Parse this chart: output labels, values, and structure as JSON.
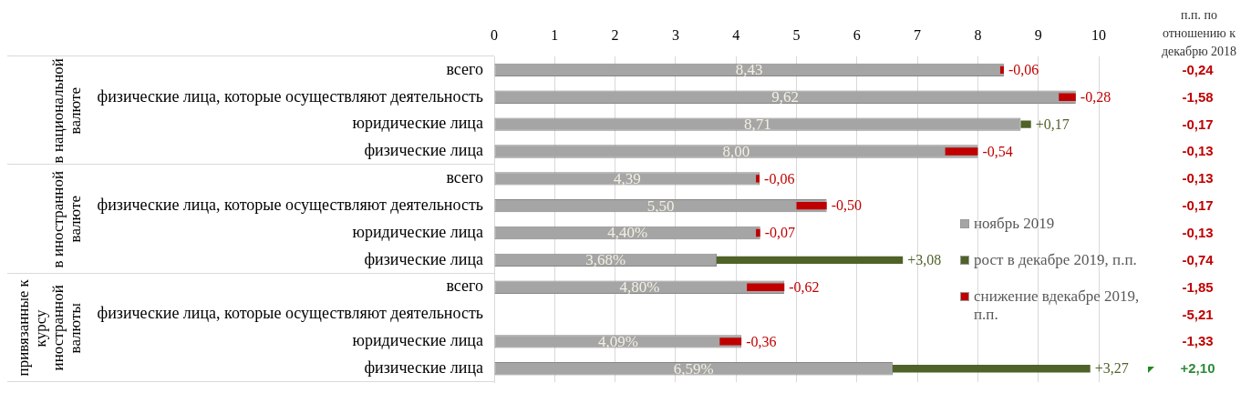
{
  "chart_data": [
    {
      "type": "bar",
      "orientation": "horizontal",
      "categories": [
        "всего",
        "физические лица, которые осуществляют деятельность",
        "юридические лица",
        "физические лица",
        "всего",
        "физические лица, которые осуществляют деятельность",
        "юридические лица",
        "физические лица",
        "всего",
        "физические лица, которые осуществляют деятельность",
        "юридические лица",
        "физические лица"
      ],
      "series": [
        {
          "name": "ноябрь 2019",
          "color": "#a5a5a5",
          "values": [
            8.43,
            9.62,
            8.71,
            8.0,
            4.39,
            5.5,
            4.4,
            3.68,
            4.8,
            null,
            4.09,
            6.59
          ],
          "value_labels": [
            "8,43",
            "9,62",
            "8,71",
            "8,00",
            "4,39",
            "5,50",
            "4,40%",
            "3,68%",
            "4,80%",
            null,
            "4,09%",
            "6,59%"
          ]
        },
        {
          "name": "рост в декабре 2019, п.п.",
          "color": "#4f6228",
          "base": [
            null,
            null,
            8.71,
            null,
            null,
            null,
            null,
            3.68,
            null,
            null,
            null,
            6.59
          ],
          "values": [
            null,
            null,
            0.17,
            null,
            null,
            null,
            null,
            3.08,
            null,
            null,
            null,
            3.27
          ],
          "value_labels": [
            null,
            null,
            "+0,17",
            null,
            null,
            null,
            null,
            "+3,08",
            null,
            null,
            null,
            "+3,27"
          ]
        },
        {
          "name": "снижение вдекабре 2019, п.п.",
          "color": "#c00000",
          "base": [
            8.43,
            9.62,
            null,
            8.0,
            4.39,
            5.5,
            4.4,
            null,
            4.8,
            null,
            4.09,
            null
          ],
          "values": [
            -0.06,
            -0.28,
            null,
            -0.54,
            -0.06,
            -0.5,
            -0.07,
            null,
            -0.62,
            null,
            -0.36,
            null
          ],
          "value_labels": [
            "-0,06",
            "-0,28",
            null,
            "-0,54",
            "-0,06",
            "-0,50",
            "-0,07",
            null,
            "-0,62",
            null,
            "-0,36",
            null
          ]
        }
      ],
      "xlim": [
        0,
        10
      ],
      "xticks": [
        0,
        1,
        2,
        3,
        4,
        5,
        6,
        7,
        8,
        9,
        10
      ],
      "grid": "x",
      "legend": "right",
      "annotations": [
        "в национальной валюте",
        "в иностранной валюте",
        "привязанные к курсу иностранной валюты"
      ]
    },
    {
      "type": "other",
      "title": "п.п. по отношению к декабрю 2018",
      "annotations": [
        "-0,24",
        "-1,58",
        "-0,17",
        "-0,13",
        "-0,13",
        "-0,17",
        "-0,13",
        "-0,74",
        "-1,85",
        "-5,21",
        "-1,33",
        "+2,10"
      ],
      "colors": [
        "#c00000",
        "#c00000",
        "#c00000",
        "#c00000",
        "#c00000",
        "#c00000",
        "#c00000",
        "#c00000",
        "#c00000",
        "#c00000",
        "#c00000",
        "#2e8b3a"
      ]
    }
  ]
}
